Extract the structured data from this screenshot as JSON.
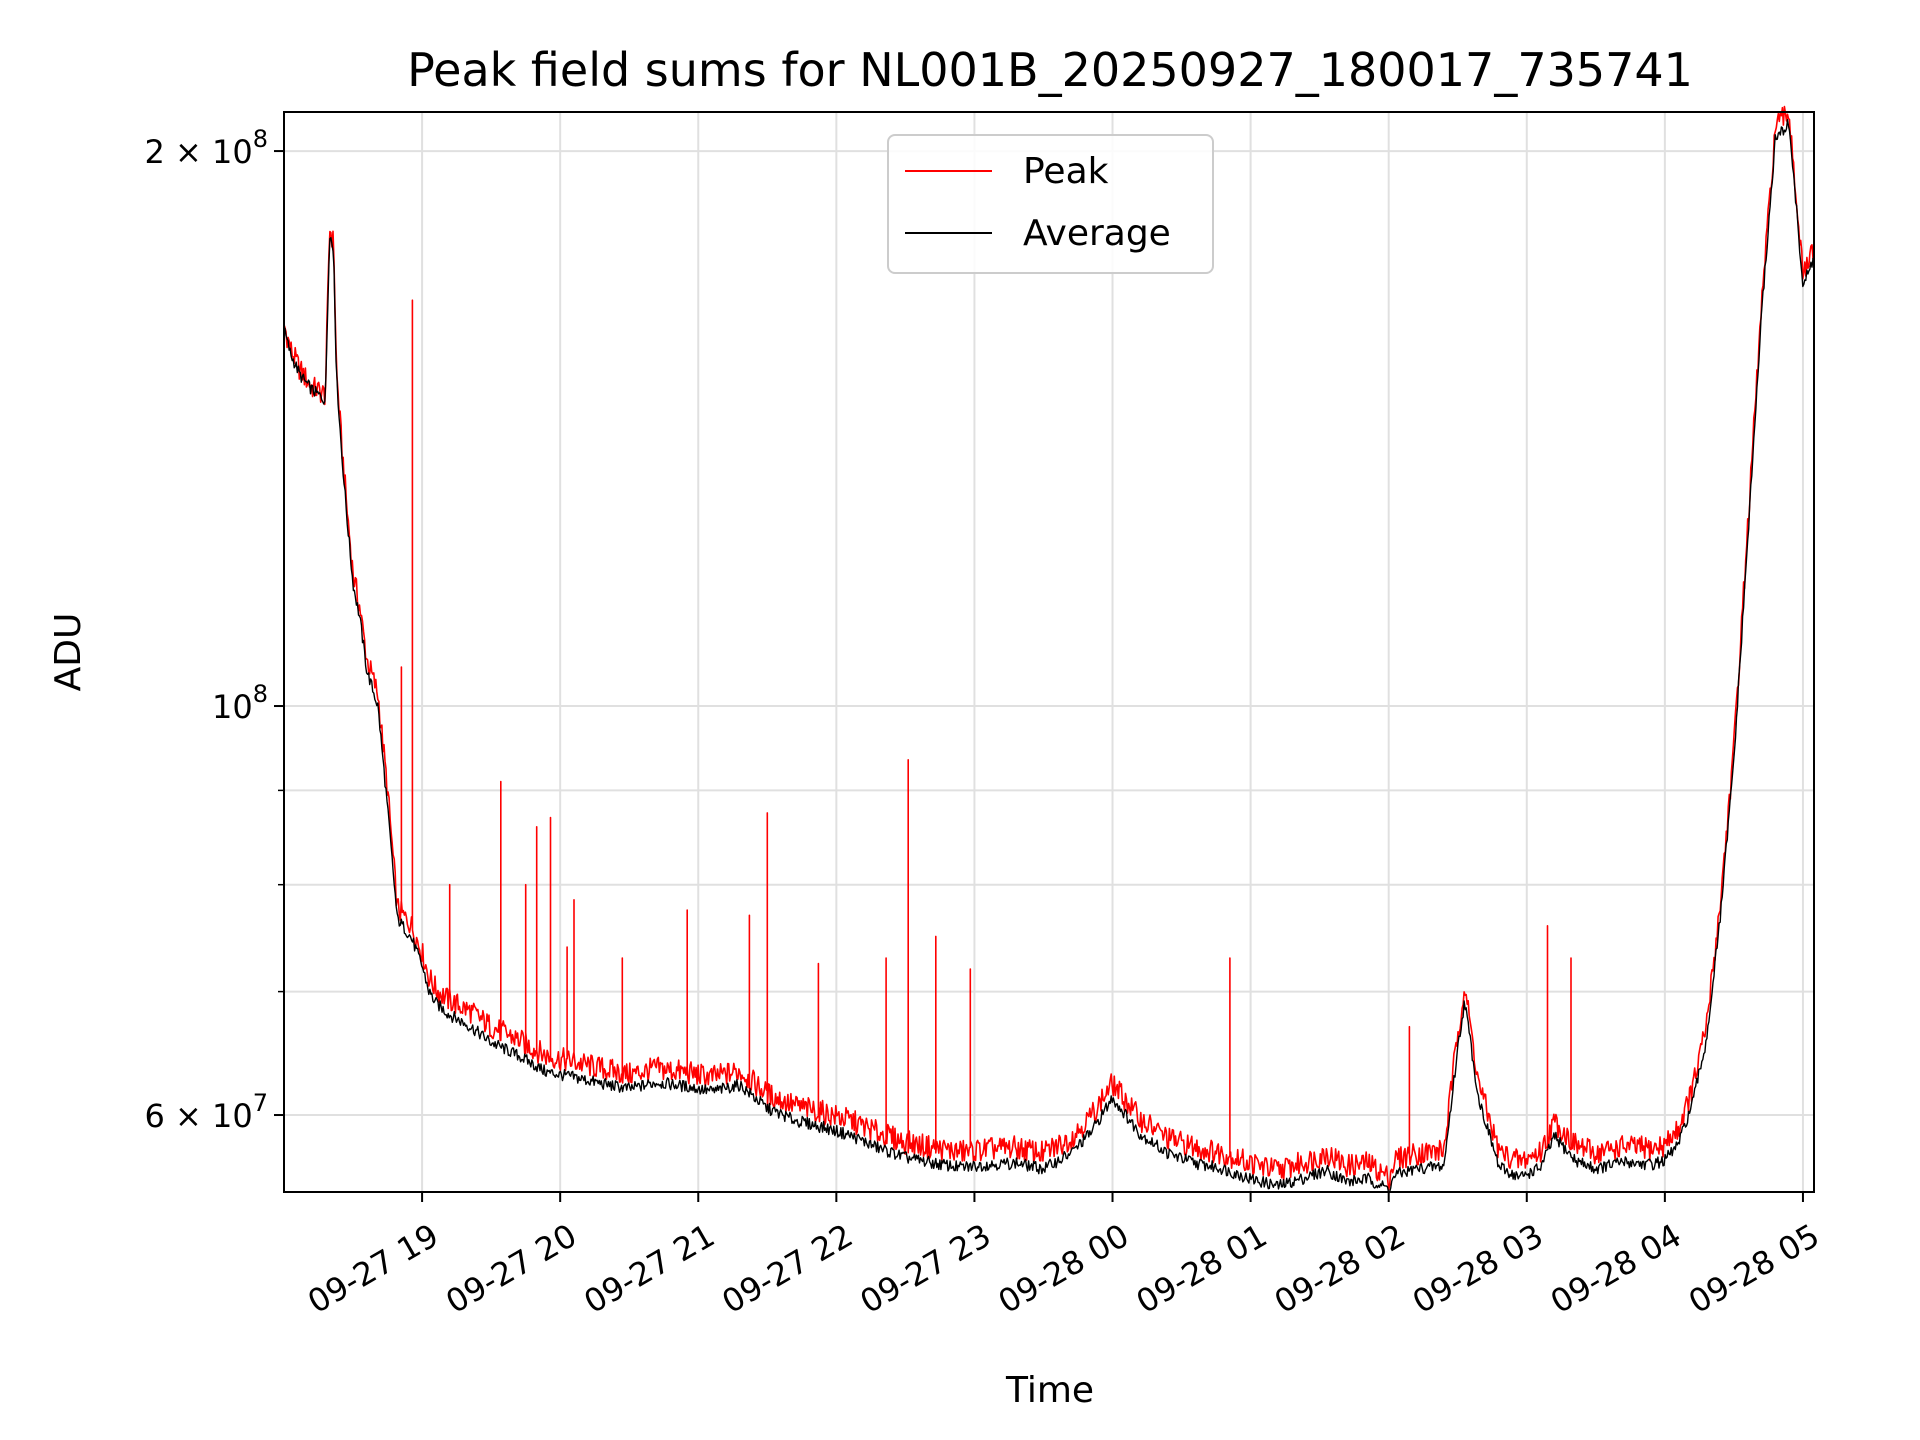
{
  "chart_data": {
    "type": "line",
    "title": "Peak field sums for NL001B_20250927_180017_735741",
    "xlabel": "Time",
    "ylabel": "ADU",
    "yscale": "log",
    "ylim": [
      54500000,
      210000000
    ],
    "xlim_hours_after_start": [
      0.0,
      11.08
    ],
    "start_time": "2025-09-27 18:00",
    "grid": true,
    "legend_position": "top-center",
    "colors": {
      "peak": "#ff0000",
      "average": "#000000",
      "grid": "#e0e0e0",
      "axis": "#000000",
      "legend_border": "#cccccc"
    },
    "x_ticks": [
      {
        "label": "09-27 19",
        "hour": 1
      },
      {
        "label": "09-27 20",
        "hour": 2
      },
      {
        "label": "09-27 21",
        "hour": 3
      },
      {
        "label": "09-27 22",
        "hour": 4
      },
      {
        "label": "09-27 23",
        "hour": 5
      },
      {
        "label": "09-28 00",
        "hour": 6
      },
      {
        "label": "09-28 01",
        "hour": 7
      },
      {
        "label": "09-28 02",
        "hour": 8
      },
      {
        "label": "09-28 03",
        "hour": 9
      },
      {
        "label": "09-28 04",
        "hour": 10
      },
      {
        "label": "09-28 05",
        "hour": 11
      }
    ],
    "y_major_ticks": [
      {
        "mantissa": "2 × 10",
        "exponent": "8",
        "value": 200000000
      },
      {
        "mantissa": "10",
        "exponent": "8",
        "value": 100000000
      },
      {
        "mantissa": "6 × 10",
        "exponent": "7",
        "value": 60000000
      }
    ],
    "y_minor_ticks": [
      70000000,
      80000000,
      90000000
    ],
    "series": [
      {
        "name": "Peak",
        "hours": [
          0.0,
          0.05,
          0.12,
          0.2,
          0.3,
          0.33,
          0.36,
          0.38,
          0.42,
          0.46,
          0.5,
          0.55,
          0.6,
          0.68,
          0.75,
          0.82,
          0.87,
          0.9,
          0.93,
          0.96,
          1.0,
          1.05,
          1.1,
          1.2,
          1.35,
          1.5,
          1.7,
          1.9,
          2.1,
          2.3,
          2.5,
          2.7,
          2.9,
          3.1,
          3.3,
          3.5,
          3.7,
          3.9,
          4.1,
          4.3,
          4.5,
          4.7,
          4.9,
          5.1,
          5.3,
          5.5,
          5.7,
          5.85,
          6.0,
          6.2,
          6.4,
          6.6,
          6.8,
          7.0,
          7.2,
          7.4,
          7.55,
          7.7,
          7.85,
          8.0,
          8.05,
          8.2,
          8.4,
          8.5,
          8.55,
          8.65,
          8.8,
          8.95,
          9.1,
          9.2,
          9.35,
          9.5,
          9.7,
          9.9,
          10.0,
          10.1,
          10.2,
          10.3,
          10.4,
          10.5,
          10.6,
          10.7,
          10.8,
          10.9,
          11.0,
          11.08
        ],
        "values": [
          161000000,
          156000000,
          152000000,
          149000000,
          147500000,
          182000000,
          178000000,
          152000000,
          138000000,
          127000000,
          118000000,
          113000000,
          106000000,
          101500000,
          90000000,
          77800000,
          76800000,
          76500000,
          75800000,
          74800000,
          73500000,
          71300000,
          70200000,
          69200000,
          68300000,
          67000000,
          65900000,
          64600000,
          64100000,
          63600000,
          63100000,
          63600000,
          63300000,
          62900000,
          63400000,
          61600000,
          60700000,
          60200000,
          59600000,
          58700000,
          58000000,
          57600000,
          57300000,
          57500000,
          57600000,
          57200000,
          58300000,
          60000000,
          62400000,
          59700000,
          58300000,
          57600000,
          57200000,
          56500000,
          56000000,
          56600000,
          57200000,
          56300000,
          56500000,
          55500000,
          56800000,
          57200000,
          57400000,
          66500000,
          70500000,
          62500000,
          57300000,
          56600000,
          57300000,
          59500000,
          57800000,
          57200000,
          57700000,
          57500000,
          57800000,
          59000000,
          62000000,
          67000000,
          78000000,
          95000000,
          125000000,
          165000000,
          206000000,
          210000000,
          171000000,
          177000000
        ],
        "spikes": [
          {
            "hour": 0.85,
            "value": 105000000
          },
          {
            "hour": 0.93,
            "value": 166000000
          },
          {
            "hour": 1.2,
            "value": 80000000
          },
          {
            "hour": 1.57,
            "value": 91000000
          },
          {
            "hour": 1.75,
            "value": 80000000
          },
          {
            "hour": 1.83,
            "value": 86000000
          },
          {
            "hour": 1.93,
            "value": 87000000
          },
          {
            "hour": 2.05,
            "value": 74000000
          },
          {
            "hour": 2.1,
            "value": 78500000
          },
          {
            "hour": 2.45,
            "value": 73000000
          },
          {
            "hour": 2.92,
            "value": 77500000
          },
          {
            "hour": 3.37,
            "value": 77000000
          },
          {
            "hour": 3.5,
            "value": 87500000
          },
          {
            "hour": 3.87,
            "value": 72500000
          },
          {
            "hour": 4.36,
            "value": 73000000
          },
          {
            "hour": 4.52,
            "value": 93500000
          },
          {
            "hour": 4.72,
            "value": 75000000
          },
          {
            "hour": 4.97,
            "value": 72000000
          },
          {
            "hour": 6.85,
            "value": 73000000
          },
          {
            "hour": 8.15,
            "value": 67000000
          },
          {
            "hour": 9.15,
            "value": 76000000
          },
          {
            "hour": 9.32,
            "value": 73000000
          }
        ]
      },
      {
        "name": "Average",
        "hours": [
          0.0,
          0.05,
          0.12,
          0.2,
          0.3,
          0.33,
          0.36,
          0.38,
          0.42,
          0.46,
          0.5,
          0.55,
          0.6,
          0.68,
          0.75,
          0.82,
          0.87,
          0.9,
          0.93,
          0.96,
          1.0,
          1.05,
          1.1,
          1.2,
          1.35,
          1.5,
          1.7,
          1.9,
          2.1,
          2.3,
          2.5,
          2.7,
          2.9,
          3.1,
          3.3,
          3.5,
          3.7,
          3.9,
          4.1,
          4.3,
          4.5,
          4.7,
          4.9,
          5.1,
          5.3,
          5.5,
          5.7,
          5.85,
          6.0,
          6.2,
          6.4,
          6.6,
          6.8,
          7.0,
          7.2,
          7.4,
          7.55,
          7.7,
          7.85,
          8.0,
          8.05,
          8.2,
          8.4,
          8.5,
          8.55,
          8.65,
          8.8,
          8.95,
          9.1,
          9.2,
          9.35,
          9.5,
          9.7,
          9.9,
          10.0,
          10.1,
          10.2,
          10.3,
          10.4,
          10.5,
          10.6,
          10.7,
          10.8,
          10.9,
          11.0,
          11.08
        ],
        "values": [
          160000000,
          155000000,
          151000000,
          148500000,
          146500000,
          181000000,
          176000000,
          151000000,
          136500000,
          125500000,
          116500000,
          111500000,
          104500000,
          100000000,
          88000000,
          76700000,
          75800000,
          75300000,
          74600000,
          73600000,
          72300000,
          70000000,
          69000000,
          68000000,
          67000000,
          65700000,
          64600000,
          63300000,
          62900000,
          62400000,
          62000000,
          62500000,
          62200000,
          61800000,
          62300000,
          60500000,
          59600000,
          59100000,
          58500000,
          57600000,
          56900000,
          56500000,
          56200000,
          56400000,
          56500000,
          56100000,
          57200000,
          58800000,
          61300000,
          58600000,
          57200000,
          56500000,
          56100000,
          55400000,
          54900000,
          55500000,
          56000000,
          55200000,
          55400000,
          54700000,
          55700000,
          56100000,
          56300000,
          65200000,
          69200000,
          61300000,
          56200000,
          55500000,
          56200000,
          58400000,
          56700000,
          56100000,
          56600000,
          56400000,
          56700000,
          57900000,
          60900000,
          65800000,
          76600000,
          93500000,
          123000000,
          163000000,
          203000000,
          207000000,
          169000000,
          175000000
        ]
      }
    ]
  }
}
